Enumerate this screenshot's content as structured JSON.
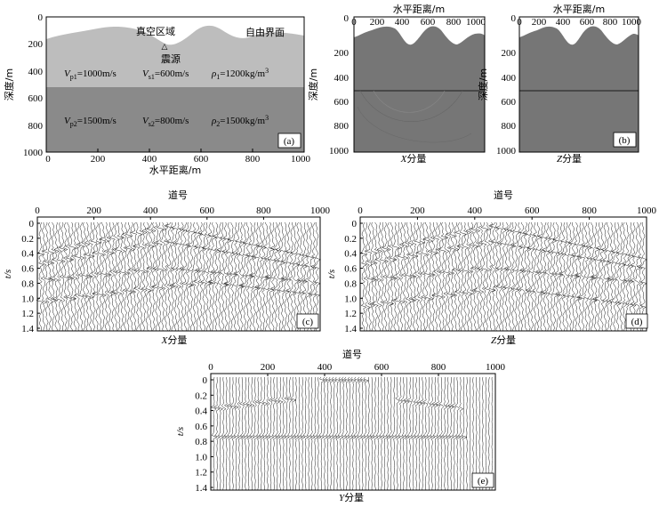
{
  "panel_a": {
    "label": "(a)",
    "vacuum": "真空区域",
    "free_surface": "自由界面",
    "source": "震源",
    "layer1": {
      "vp": "V",
      "vp_sub": "p1",
      "vp_val": "=1000m/s",
      "vs": "V",
      "vs_sub": "s1",
      "vs_val": "=600m/s",
      "rho": "ρ",
      "rho_sub": "1",
      "rho_val": "=1200kg/m",
      "rho_sup": "3"
    },
    "layer2": {
      "vp": "V",
      "vp_sub": "p2",
      "vp_val": "=1500m/s",
      "vs": "V",
      "vs_sub": "s2",
      "vs_val": "=800m/s",
      "rho": "ρ",
      "rho_sub": "2",
      "rho_val": "=1500kg/m",
      "rho_sup": "3"
    },
    "xlabel": "水平距离/m",
    "ylabel": "深度/m",
    "xticks": [
      "0",
      "200",
      "400",
      "600",
      "800",
      "1000"
    ],
    "yticks": [
      "0",
      "200",
      "400",
      "600",
      "800",
      "1000"
    ]
  },
  "panel_b_x": {
    "top_label": "水平距离/m",
    "ylabel": "深度/m",
    "xticks": [
      "0",
      "200",
      "400",
      "600",
      "800",
      "1000"
    ],
    "yticks": [
      "0",
      "200",
      "400",
      "600",
      "800",
      "1000"
    ],
    "caption_var": "X",
    "caption": "分量"
  },
  "panel_b_z": {
    "label": "(b)",
    "top_label": "水平距离/m",
    "ylabel": "深度/m",
    "xticks": [
      "0",
      "200",
      "400",
      "600",
      "800",
      "1000"
    ],
    "yticks": [
      "0",
      "200",
      "400",
      "600",
      "800",
      "1000"
    ],
    "caption_var": "Z",
    "caption": "分量"
  },
  "panel_c": {
    "label": "(c)",
    "top_label": "道号",
    "ylabel": "t/s",
    "xticks": [
      "0",
      "200",
      "400",
      "600",
      "800",
      "1000"
    ],
    "yticks": [
      "0",
      "0.2",
      "0.4",
      "0.6",
      "0.8",
      "1.0",
      "1.2",
      "1.4"
    ],
    "caption_var": "X",
    "caption": "分量"
  },
  "panel_d": {
    "label": "(d)",
    "top_label": "道号",
    "ylabel": "t/s",
    "xticks": [
      "0",
      "200",
      "400",
      "600",
      "800",
      "1000"
    ],
    "yticks": [
      "0",
      "0.2",
      "0.4",
      "0.6",
      "0.8",
      "1.0",
      "1.2",
      "1.4"
    ],
    "caption_var": "Z",
    "caption": "分量"
  },
  "panel_e": {
    "label": "(e)",
    "top_label": "道号",
    "ylabel": "t/s",
    "xticks": [
      "0",
      "200",
      "400",
      "600",
      "800",
      "1000"
    ],
    "yticks": [
      "0",
      "0.2",
      "0.4",
      "0.6",
      "0.8",
      "1.0",
      "1.2",
      "1.4"
    ],
    "caption_var": "Y",
    "caption": "分量"
  },
  "colors": {
    "layer1": "#bdbdbd",
    "layer2": "#8a8a8a",
    "snapshot": "#767676",
    "interface": "#1a1a1a"
  }
}
